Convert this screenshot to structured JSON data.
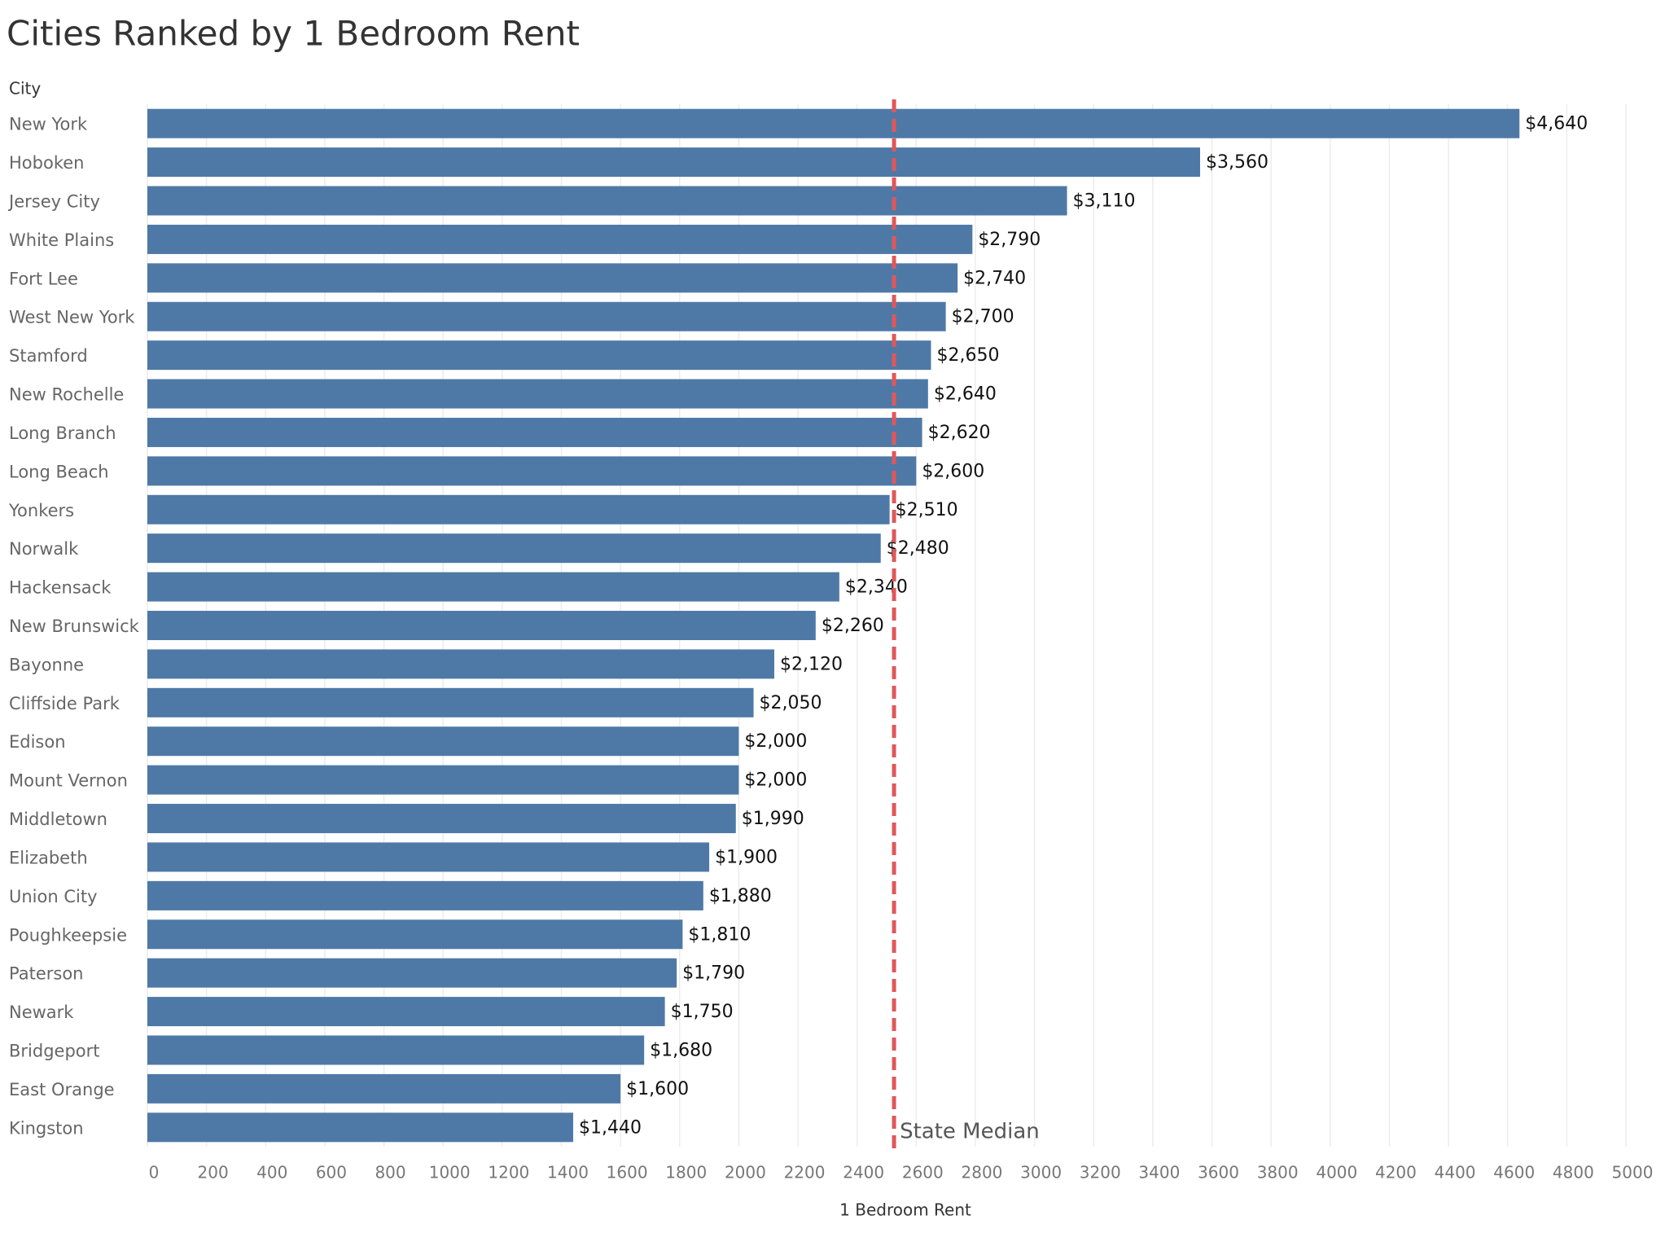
{
  "chart_data": {
    "type": "bar",
    "orientation": "horizontal",
    "title": "Cities Ranked by 1 Bedroom Rent",
    "y_label": "City",
    "x_label": "1 Bedroom Rent",
    "categories": [
      "New York",
      "Hoboken",
      "Jersey City",
      "White Plains",
      "Fort Lee",
      "West New York",
      "Stamford",
      "New Rochelle",
      "Long Branch",
      "Long Beach",
      "Yonkers",
      "Norwalk",
      "Hackensack",
      "New Brunswick",
      "Bayonne",
      "Cliffside Park",
      "Edison",
      "Mount Vernon",
      "Middletown",
      "Elizabeth",
      "Union City",
      "Poughkeepsie",
      "Paterson",
      "Newark",
      "Bridgeport",
      "East Orange",
      "Kingston"
    ],
    "values": [
      4640,
      3560,
      3110,
      2790,
      2740,
      2700,
      2650,
      2640,
      2620,
      2600,
      2510,
      2480,
      2340,
      2260,
      2120,
      2050,
      2000,
      2000,
      1990,
      1900,
      1880,
      1810,
      1790,
      1750,
      1680,
      1600,
      1440
    ],
    "value_labels": [
      "$4,640",
      "$3,560",
      "$3,110",
      "$2,790",
      "$2,740",
      "$2,700",
      "$2,650",
      "$2,640",
      "$2,620",
      "$2,600",
      "$2,510",
      "$2,480",
      "$2,340",
      "$2,260",
      "$2,120",
      "$2,050",
      "$2,000",
      "$2,000",
      "$1,990",
      "$1,900",
      "$1,880",
      "$1,810",
      "$1,790",
      "$1,750",
      "$1,680",
      "$1,600",
      "$1,440"
    ],
    "color": "#4e79a7",
    "xlim": [
      0,
      5000
    ],
    "xticks": [
      0,
      200,
      400,
      600,
      800,
      1000,
      1200,
      1400,
      1600,
      1800,
      2000,
      2200,
      2400,
      2600,
      2800,
      3000,
      3200,
      3400,
      3600,
      3800,
      4000,
      4200,
      4400,
      4600,
      4800,
      5000
    ],
    "grid": true,
    "reference_line": {
      "value": 2525,
      "label": "State Median",
      "color": "#e15759"
    }
  }
}
